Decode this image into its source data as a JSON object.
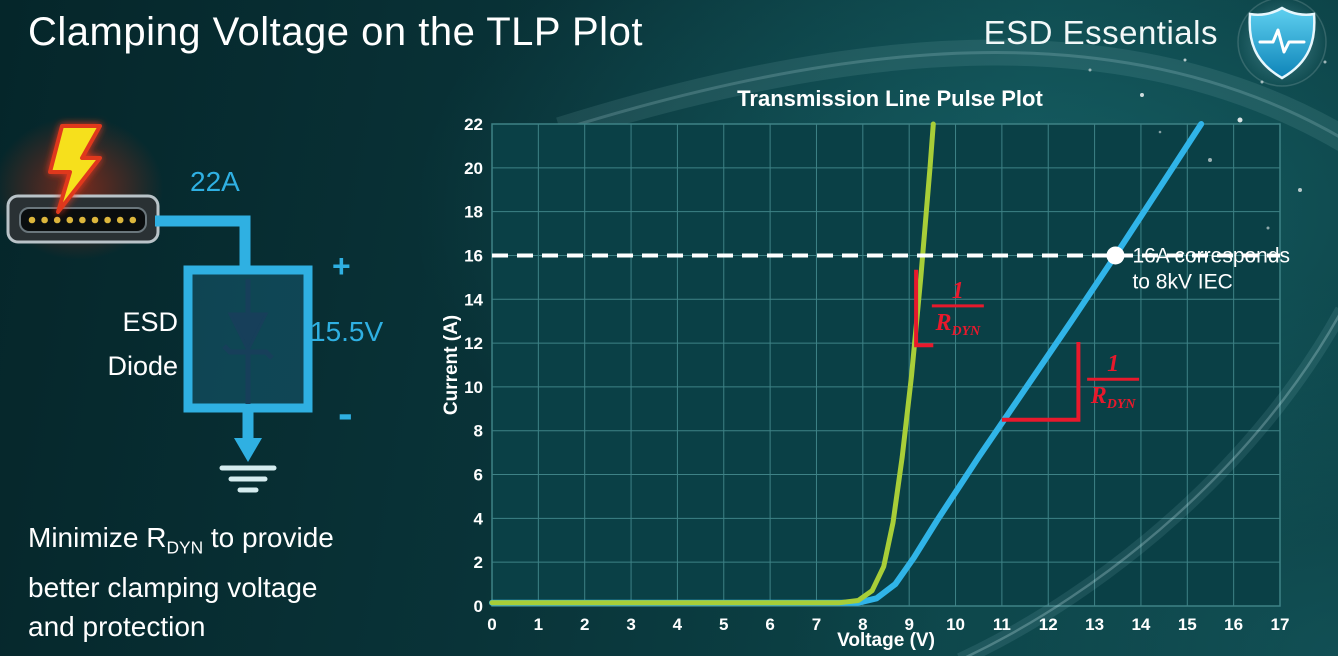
{
  "slide": {
    "title": "Clamping Voltage on the TLP Plot",
    "brand": "ESD Essentials"
  },
  "colors": {
    "accent_cyan": "#2fb0e2",
    "curve_green": "#a8ce38",
    "curve_blue": "#30b4e8",
    "annotation_red": "#e8192c"
  },
  "diagram": {
    "current_label": "22A",
    "esd_label_line1": "ESD",
    "esd_label_line2": "Diode",
    "plus": "+",
    "voltage_label": "15.5V",
    "minus": "-"
  },
  "footer_note": {
    "line1_prefix": "Minimize R",
    "line1_sub": "DYN",
    "line1_suffix": " to provide",
    "line2": "better clamping voltage",
    "line3": "and protection"
  },
  "chart_data": {
    "type": "line",
    "title": "Transmission Line Pulse Plot",
    "xlabel": "Voltage (V)",
    "ylabel": "Current (A)",
    "xlim": [
      0,
      17
    ],
    "ylim": [
      0,
      22
    ],
    "xticks": [
      0,
      1,
      2,
      3,
      4,
      5,
      6,
      7,
      8,
      9,
      10,
      11,
      12,
      13,
      14,
      15,
      16,
      17
    ],
    "yticks": [
      0,
      2,
      4,
      6,
      8,
      10,
      12,
      14,
      16,
      18,
      20,
      22
    ],
    "grid": true,
    "legend": "none",
    "colors": {
      "plot_bg": "#0a4046",
      "grid": "#3e8286",
      "axis_text": "#ffffff",
      "red": "#e8192c"
    },
    "series": [
      {
        "name": "blue-curve (higher RDYN)",
        "color": "#30b4e8",
        "width": 6,
        "points": [
          [
            0,
            0.15
          ],
          [
            7.9,
            0.15
          ],
          [
            8.3,
            0.35
          ],
          [
            8.7,
            1.0
          ],
          [
            9.1,
            2.2
          ],
          [
            9.6,
            3.9
          ],
          [
            10.5,
            6.8
          ],
          [
            11.5,
            9.9
          ],
          [
            12.5,
            13.0
          ],
          [
            13.45,
            16.0
          ],
          [
            14.5,
            19.4
          ],
          [
            15.3,
            22.0
          ]
        ]
      },
      {
        "name": "green-curve (low RDYN)",
        "color": "#a8ce38",
        "width": 5,
        "points": [
          [
            0,
            0.15
          ],
          [
            7.5,
            0.15
          ],
          [
            7.9,
            0.25
          ],
          [
            8.2,
            0.7
          ],
          [
            8.45,
            1.8
          ],
          [
            8.65,
            3.8
          ],
          [
            8.85,
            6.8
          ],
          [
            9.05,
            10.5
          ],
          [
            9.25,
            15.0
          ],
          [
            9.45,
            20.0
          ],
          [
            9.52,
            22.0
          ]
        ]
      }
    ],
    "threshold": {
      "y": 16,
      "style": "dashed",
      "color": "#ffffff"
    },
    "marker": {
      "x": 13.45,
      "y": 16,
      "color": "#ffffff",
      "label_line1": "16A corresponds",
      "label_line2": "to 8kV IEC"
    },
    "slope_annotations": [
      {
        "path": [
          [
            9.15,
            15.35
          ],
          [
            9.15,
            11.9
          ],
          [
            9.52,
            11.9
          ]
        ],
        "fraction_numerator": "1",
        "fraction_denominator": "R",
        "fraction_denominator_sub": "DYN",
        "fraction_x": 10.05,
        "fraction_y": 13.7
      },
      {
        "path": [
          [
            11.0,
            8.5
          ],
          [
            12.65,
            8.5
          ],
          [
            12.65,
            12.05
          ]
        ],
        "fraction_numerator": "1",
        "fraction_denominator": "R",
        "fraction_denominator_sub": "DYN",
        "fraction_x": 13.4,
        "fraction_y": 10.35
      }
    ]
  }
}
